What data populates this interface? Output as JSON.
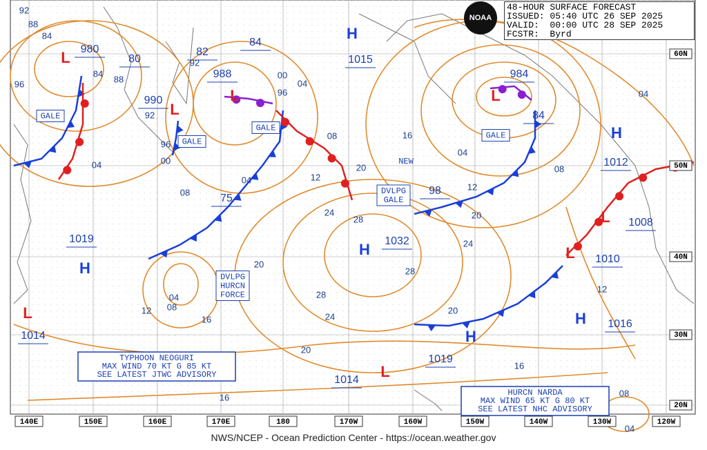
{
  "header": {
    "title": "48-HOUR SURFACE FORECAST",
    "issued": "ISSUED: 05:40 UTC 26 SEP 2025",
    "valid": "VALID:  00:00 UTC 28 SEP 2025",
    "forecaster": "FCSTR:  Byrd",
    "logo": "NOAA"
  },
  "longitude_labels": [
    "140E",
    "150E",
    "160E",
    "170E",
    "180",
    "170W",
    "160W",
    "150W",
    "140W",
    "130W",
    "120W"
  ],
  "latitude_labels": [
    "60N",
    "50N",
    "40N",
    "30N",
    "20N"
  ],
  "centers": [
    "L",
    "L",
    "L",
    "L",
    "L",
    "L",
    "L",
    "L",
    "H",
    "H",
    "H",
    "H",
    "H",
    "H"
  ],
  "pressures": [
    "980",
    "80",
    "82",
    "84",
    "988",
    "990",
    "1015",
    "984",
    "84",
    "1012",
    "98",
    "75",
    "1019",
    "1032",
    "1008",
    "1010",
    "1016",
    "1014",
    "1019",
    "1014"
  ],
  "isobar_labels": [
    "92",
    "88",
    "84",
    "96",
    "84",
    "88",
    "92",
    "96",
    "00",
    "04",
    "08",
    "92",
    "96",
    "00",
    "04",
    "08",
    "12",
    "04",
    "16",
    "20",
    "24",
    "28",
    "12",
    "20",
    "24",
    "28",
    "28",
    "24",
    "20",
    "16",
    "12",
    "04",
    "08",
    "20",
    "16",
    "20",
    "16",
    "12",
    "08",
    "04",
    "04",
    "08",
    "04"
  ],
  "boxes": [
    "GALE",
    "GALE",
    "GALE",
    "GALE",
    "DVLPG GALE",
    "DVLPG HURCN FORCE"
  ],
  "new_label": "NEW",
  "typhoon_box": [
    "TYPHOON NEOGURI",
    "MAX WIND 70 KT G 85 KT",
    "SEE LATEST JTWC ADVISORY"
  ],
  "hurricane_box": [
    "HURCN NARDA",
    "MAX WIND 65 KT G 80 KT",
    "SEE LATEST NHC ADVISORY"
  ],
  "footer": "NWS/NCEP - Ocean Prediction Center - https://ocean.weather.gov"
}
